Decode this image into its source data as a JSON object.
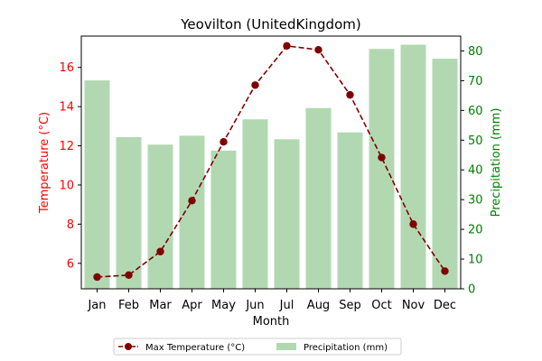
{
  "chart_data": {
    "type": "bar",
    "title": "Yeovilton (UnitedKingdom)",
    "xlabel": "Month",
    "categories": [
      "Jan",
      "Feb",
      "Mar",
      "Apr",
      "May",
      "Jun",
      "Jul",
      "Aug",
      "Sep",
      "Oct",
      "Nov",
      "Dec"
    ],
    "y_left": {
      "label": "Temperature (°C)",
      "range": [
        4.7,
        17.6
      ],
      "ticks": [
        "6",
        "8",
        "10",
        "12",
        "14",
        "16"
      ],
      "color": "#ff0000"
    },
    "y_right": {
      "label": "Precipitation (mm)",
      "range": [
        0,
        85
      ],
      "ticks": [
        "0",
        "10",
        "20",
        "30",
        "40",
        "50",
        "60",
        "70",
        "80"
      ],
      "color": "#008000"
    },
    "series": [
      {
        "name": "Max Temperature (°C)",
        "type": "line",
        "axis": "left",
        "color": "#800000",
        "line_style": "dashed",
        "marker": "circle",
        "values": [
          5.3,
          5.4,
          6.6,
          9.2,
          12.2,
          15.1,
          17.1,
          16.9,
          14.6,
          11.4,
          8.0,
          5.6
        ]
      },
      {
        "name": "Precipitation (mm)",
        "type": "bar",
        "axis": "right",
        "color": "#b2d8b2",
        "values": [
          70.1,
          51.0,
          48.5,
          51.5,
          46.5,
          57.0,
          50.3,
          60.8,
          52.6,
          80.7,
          82.1,
          77.4
        ]
      }
    ],
    "legend": {
      "position": "bottom-center",
      "entries": [
        "Max Temperature (°C)",
        "Precipitation (mm)"
      ]
    },
    "grid": false
  }
}
